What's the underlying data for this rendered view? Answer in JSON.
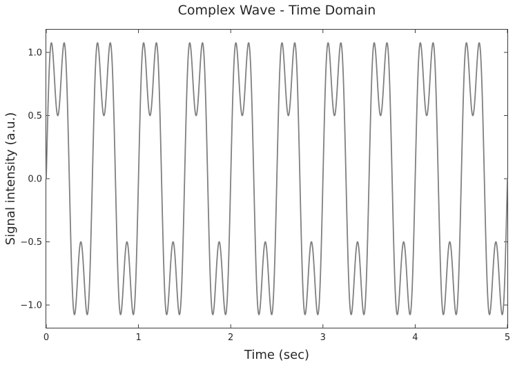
{
  "chart_data": {
    "type": "line",
    "title": "Complex Wave - Time Domain",
    "xlabel": "Time (sec)",
    "ylabel": "Signal intensity (a.u.)",
    "xlim": [
      0,
      5
    ],
    "ylim": [
      -1.18,
      1.18
    ],
    "x_ticks": [
      0,
      1,
      2,
      3,
      4,
      5
    ],
    "x_tick_labels": [
      "0",
      "1",
      "2",
      "3",
      "4",
      "5"
    ],
    "y_ticks": [
      1.0,
      0.5,
      0.0,
      -0.5,
      -1.0
    ],
    "y_tick_labels": [
      "1.0",
      "0.5",
      "0.0",
      "−0.5",
      "−1.0"
    ],
    "grid": false,
    "series": [
      {
        "color": "#7f7f7f",
        "function": "sin(2π·2t) + 0.5·sin(2π·6t)",
        "components": [
          {
            "frequency_hz": 2,
            "amplitude": 1.0
          },
          {
            "frequency_hz": 6,
            "amplitude": 0.5
          }
        ],
        "x_range": [
          0,
          5
        ],
        "y_max": 1.08,
        "y_min": -1.08
      }
    ]
  }
}
